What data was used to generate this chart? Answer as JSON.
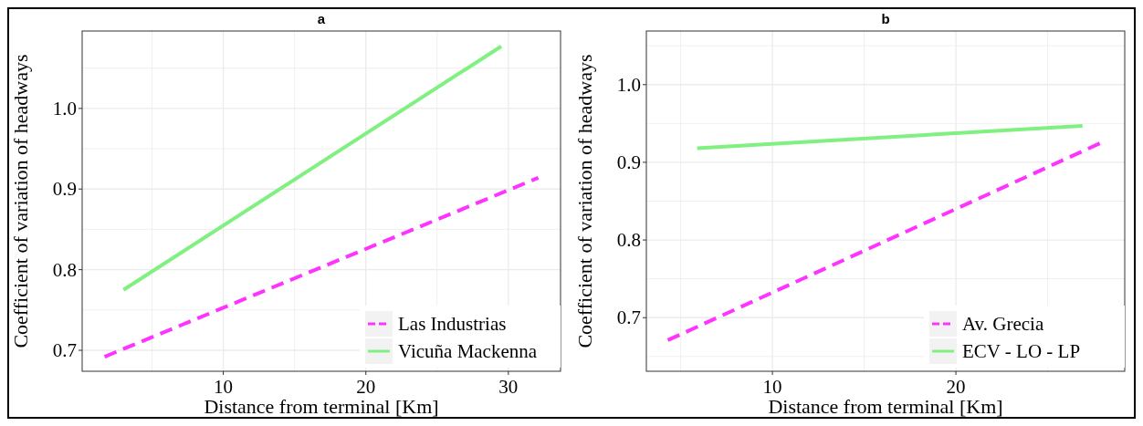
{
  "chart_data": [
    {
      "type": "line",
      "title": "a",
      "xlabel": "Distance from terminal [Km]",
      "ylabel": "Coefficient of variation of headways",
      "xlim": [
        0.1,
        33.66
      ],
      "xticks": [
        {
          "value": 5,
          "label": null
        },
        10,
        {
          "value": 15,
          "label": null
        },
        20,
        {
          "value": 25,
          "label": null
        },
        30
      ],
      "ylim": [
        0.674,
        1.096
      ],
      "yticks": [
        0.7,
        {
          "value": 0.75,
          "label": null
        },
        0.8,
        {
          "value": 0.85,
          "label": null
        },
        0.9,
        {
          "value": 0.95,
          "label": null
        },
        "1.0",
        {
          "value": 1.05,
          "label": null
        }
      ],
      "grid": true,
      "legend": "bottom right",
      "series": [
        {
          "name": "Las Industrias",
          "color": "#ff33ff",
          "line_style": "dashed",
          "x": [
            1.67,
            32.1
          ],
          "values": [
            0.692,
            0.914
          ]
        },
        {
          "name": "Vicuña Mackenna",
          "color": "#80f080",
          "line_style": "solid",
          "x": [
            3.0,
            29.5
          ],
          "values": [
            0.775,
            1.077
          ]
        }
      ]
    },
    {
      "type": "line",
      "title": "b",
      "xlabel": "Distance from terminal [Km]",
      "ylabel": "Coefficient of variation of headways",
      "xlim": [
        3.13,
        29.2
      ],
      "xticks": [
        {
          "value": 5,
          "label": null
        },
        10,
        {
          "value": 15,
          "label": null
        },
        20,
        {
          "value": 25,
          "label": null
        }
      ],
      "ylim": [
        0.631,
        1.069
      ],
      "yticks": [
        {
          "value": 0.65,
          "label": null
        },
        0.7,
        {
          "value": 0.75,
          "label": null
        },
        0.8,
        {
          "value": 0.85,
          "label": null
        },
        0.9,
        {
          "value": 0.95,
          "label": null
        },
        "1.0",
        {
          "value": 1.05,
          "label": null
        }
      ],
      "grid": true,
      "legend": "bottom right",
      "series": [
        {
          "name": "Av. Grecia",
          "color": "#ff33ff",
          "line_style": "dashed",
          "x": [
            4.3,
            27.9
          ],
          "values": [
            0.671,
            0.925
          ]
        },
        {
          "name": "ECV - LO - LP",
          "color": "#80f080",
          "line_style": "solid",
          "x": [
            5.9,
            26.9
          ],
          "values": [
            0.918,
            0.947
          ]
        }
      ]
    }
  ]
}
